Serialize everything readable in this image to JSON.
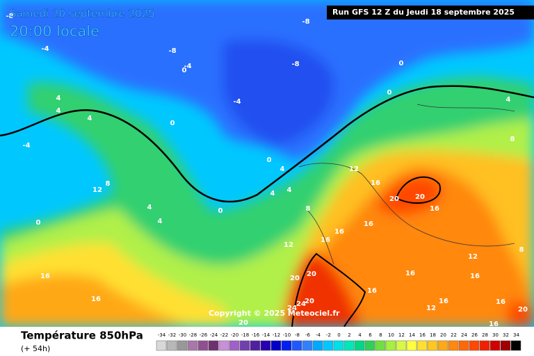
{
  "header": {
    "date": "Samedi 20 septembre 2025",
    "time": "20:00 locale",
    "run": "Run GFS 12 Z du Jeudi 18 septembre 2025",
    "copyright": "Copyright © 2025 Meteociel.fr"
  },
  "legend": {
    "title": "Température 850hPa",
    "subtitle": "(+ 54h)",
    "ticks": [
      -34,
      -32,
      -30,
      -28,
      -26,
      -24,
      -22,
      -20,
      -18,
      -16,
      -14,
      -12,
      -10,
      -8,
      -6,
      -4,
      -2,
      0,
      2,
      4,
      6,
      8,
      10,
      12,
      14,
      16,
      18,
      20,
      22,
      24,
      26,
      28,
      30,
      32,
      34
    ],
    "colors": [
      "#d8d8d8",
      "#b8b8b8",
      "#989898",
      "#a878a8",
      "#905090",
      "#703070",
      "#c890d8",
      "#a060c8",
      "#7040b0",
      "#5020a0",
      "#2800b0",
      "#0000c8",
      "#0020f0",
      "#2058ff",
      "#3080ff",
      "#00a8ff",
      "#00c8ff",
      "#00e0e8",
      "#00e8b8",
      "#00d888",
      "#30d058",
      "#70e040",
      "#a8f040",
      "#d8f848",
      "#ffff40",
      "#ffe030",
      "#ffc820",
      "#ffa818",
      "#ff8810",
      "#ff6808",
      "#ff4800",
      "#f02000",
      "#d00000",
      "#a00000",
      "#000000"
    ]
  },
  "map": {
    "contour_labels": [
      -8,
      -4,
      -8,
      0,
      -4,
      -8,
      -8,
      0,
      -4,
      4,
      4,
      4,
      -4,
      0,
      0,
      4,
      4,
      4,
      8,
      12,
      16,
      12,
      8,
      4,
      4,
      0,
      0,
      16,
      16,
      12,
      16,
      16,
      20,
      20,
      16,
      16,
      20,
      20,
      20,
      24,
      24,
      20,
      16,
      16,
      12,
      16,
      16,
      16,
      20,
      8,
      12,
      16,
      4,
      8,
      0
    ]
  }
}
